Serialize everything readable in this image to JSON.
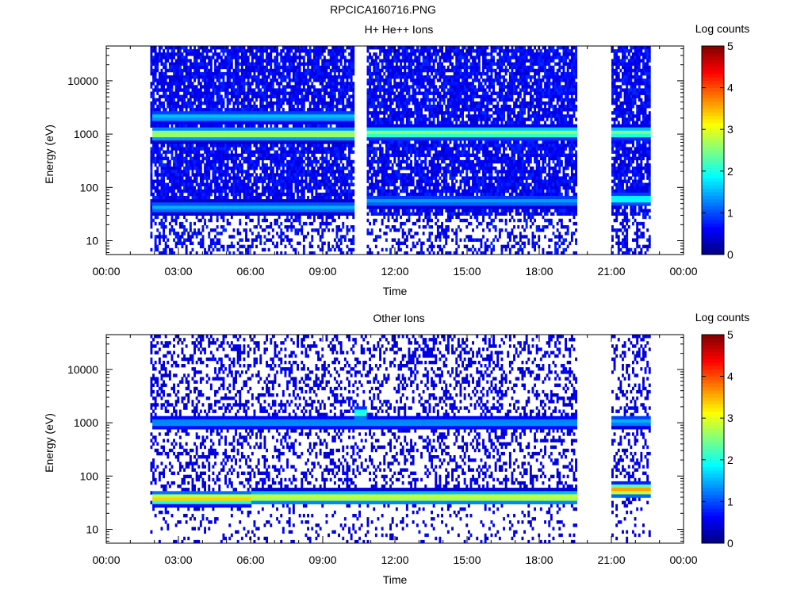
{
  "file_title": "RPCICA160716.PNG",
  "chart_data": [
    {
      "type": "heatmap",
      "title": "H+ He++ Ions",
      "xlabel": "Time",
      "ylabel": "Energy (eV)",
      "yscale": "log",
      "xlim_hours": [
        0,
        24
      ],
      "ylim_eV": [
        5.5,
        45000
      ],
      "x_tick_labels": [
        "00:00",
        "03:00",
        "06:00",
        "09:00",
        "12:00",
        "15:00",
        "18:00",
        "21:00",
        "00:00"
      ],
      "y_tick_labels": [
        "10",
        "100",
        "1000",
        "10000"
      ],
      "colorbar": {
        "label": "Log counts",
        "range": [
          0,
          5
        ],
        "tick_labels": [
          "0",
          "1",
          "2",
          "3",
          "4",
          "5"
        ]
      },
      "data_intervals_hours": [
        [
          1.83,
          10.3
        ],
        [
          10.83,
          19.5
        ],
        [
          21.0,
          22.55
        ]
      ],
      "bands": [
        {
          "from_h": 1.83,
          "to_h": 10.3,
          "energy_eV": 1000,
          "log_counts": 2.8
        },
        {
          "from_h": 10.83,
          "to_h": 19.5,
          "energy_eV": 1050,
          "log_counts": 2.6
        },
        {
          "from_h": 21.0,
          "to_h": 22.55,
          "energy_eV": 1050,
          "log_counts": 2.5
        },
        {
          "from_h": 1.83,
          "to_h": 10.3,
          "energy_eV": 2100,
          "log_counts": 1.6
        },
        {
          "from_h": 1.83,
          "to_h": 10.3,
          "energy_eV": 42,
          "log_counts": 1.5
        },
        {
          "from_h": 10.83,
          "to_h": 19.5,
          "energy_eV": 55,
          "log_counts": 1.4
        },
        {
          "from_h": 21.0,
          "to_h": 22.55,
          "energy_eV": 60,
          "log_counts": 2.0
        }
      ],
      "background_log_counts": 0.6,
      "background_fill_fraction": 0.82
    },
    {
      "type": "heatmap",
      "title": "Other Ions",
      "xlabel": "Time",
      "ylabel": "Energy (eV)",
      "yscale": "log",
      "xlim_hours": [
        0,
        24
      ],
      "ylim_eV": [
        5.5,
        45000
      ],
      "x_tick_labels": [
        "00:00",
        "03:00",
        "06:00",
        "09:00",
        "12:00",
        "15:00",
        "18:00",
        "21:00",
        "00:00"
      ],
      "y_tick_labels": [
        "10",
        "100",
        "1000",
        "10000"
      ],
      "colorbar": {
        "label": "Log counts",
        "range": [
          0,
          5
        ],
        "tick_labels": [
          "0",
          "1",
          "2",
          "3",
          "4",
          "5"
        ]
      },
      "data_intervals_hours": [
        [
          1.83,
          19.5
        ],
        [
          21.0,
          22.55
        ]
      ],
      "bands": [
        {
          "from_h": 1.83,
          "to_h": 19.5,
          "energy_eV": 1000,
          "log_counts": 1.4
        },
        {
          "from_h": 21.0,
          "to_h": 22.55,
          "energy_eV": 1050,
          "log_counts": 1.5
        },
        {
          "from_h": 1.83,
          "to_h": 6.0,
          "energy_eV": 38,
          "log_counts": 3.4
        },
        {
          "from_h": 6.0,
          "to_h": 19.5,
          "energy_eV": 40,
          "log_counts": 3.0
        },
        {
          "from_h": 21.0,
          "to_h": 22.55,
          "energy_eV": 55,
          "log_counts": 3.6
        },
        {
          "from_h": 10.3,
          "to_h": 10.83,
          "energy_eV": 1500,
          "log_counts": 2.2
        }
      ],
      "background_log_counts": 0.5,
      "background_fill_fraction": 0.32
    }
  ]
}
